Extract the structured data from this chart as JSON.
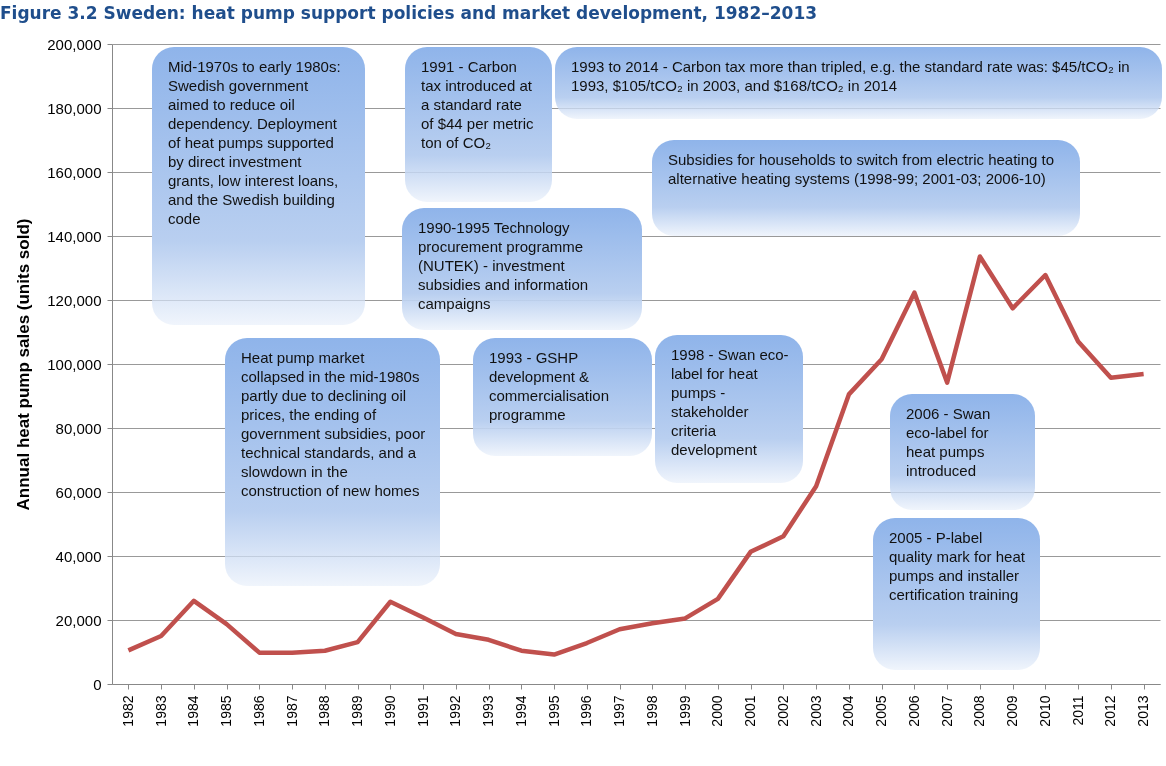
{
  "chart_data": {
    "type": "line",
    "title": "Figure 3.2 Sweden: heat pump support policies and market development, 1982–2013",
    "ylabel": "Annual heat pump sales (units sold)",
    "categories": [
      "1982",
      "1983",
      "1984",
      "1985",
      "1986",
      "1987",
      "1988",
      "1989",
      "1990",
      "1991",
      "1992",
      "1993",
      "1994",
      "1995",
      "1996",
      "1997",
      "1998",
      "1999",
      "2000",
      "2001",
      "2002",
      "2003",
      "2004",
      "2005",
      "2006",
      "2007",
      "2008",
      "2009",
      "2010",
      "2011",
      "2012",
      "2013"
    ],
    "series": [
      {
        "color": "#c0504d",
        "values": [
          10500,
          15000,
          26000,
          18700,
          9800,
          9800,
          10400,
          13100,
          25700,
          20800,
          15600,
          13800,
          10400,
          9200,
          12800,
          17100,
          19000,
          20500,
          26600,
          41300,
          46200,
          61800,
          90500,
          101500,
          122300,
          94200,
          133600,
          117400,
          127800,
          107000,
          95700,
          96900
        ]
      }
    ],
    "ylim": [
      0,
      200000
    ],
    "yticks": [
      0,
      {
        "value": 20000,
        "label": "20,000"
      },
      {
        "value": 40000,
        "label": "40,000"
      },
      {
        "value": 60000,
        "label": "60,000"
      },
      {
        "value": 80000,
        "label": "80,000"
      },
      {
        "value": 100000,
        "label": "100,000"
      },
      {
        "value": 120000,
        "label": "120,000"
      },
      {
        "value": 140000,
        "label": "140,000"
      },
      {
        "value": 160000,
        "label": "160,000"
      },
      {
        "value": 180000,
        "label": "180,000"
      },
      {
        "value": 200000,
        "label": "200,000"
      }
    ],
    "grid": "y",
    "marker": "none",
    "line_style": "solid",
    "annotations": [
      "Mid-1970s to early 1980s: Swedish government aimed to reduce oil dependency. Deployment of heat pumps supported by direct investment grants, low interest loans, and the Swedish building code",
      "1991 - Carbon tax introduced at a standard rate of $44 per metric ton of CO₂",
      "1993 to 2014 - Carbon tax more than tripled, e.g. the standard rate was:  $45/tCO₂ in 1993, $105/tCO₂ in 2003, and $168/tCO₂ in 2014",
      "Subsidies for households to switch from electric heating to alternative heating systems (1998-99; 2001-03; 2006-10)",
      "1990-1995 Technology procurement programme (NUTEK) - investment subsidies and information campaigns",
      "Heat pump market collapsed in the mid-1980s partly due to declining oil prices, the ending of government subsidies, poor technical standards, and a slowdown in the construction of new homes",
      "1993 - GSHP development & commercialisation programme",
      "1998 - Swan eco-label for heat pumps - stakeholder criteria development",
      "2006 - Swan eco-label for heat pumps introduced",
      "2005 - P-label quality mark for heat pumps and installer certification training"
    ]
  }
}
